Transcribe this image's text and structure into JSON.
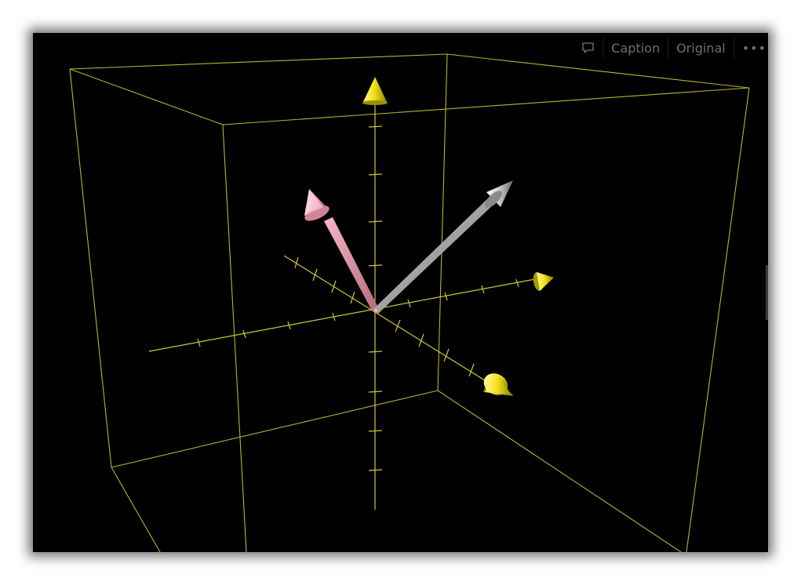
{
  "toolbar": {
    "comment_icon": "speech-bubble-icon",
    "caption_label": "Caption",
    "original_label": "Original",
    "more_label": "•••"
  },
  "scene": {
    "bounding_box_color": "#c8c23a",
    "axis_color": "#d4cf3c",
    "axis_arrow_color": "#e8dc10",
    "vector_pink_color": "#e79ab0",
    "vector_gray_color": "#bdbdbd"
  }
}
